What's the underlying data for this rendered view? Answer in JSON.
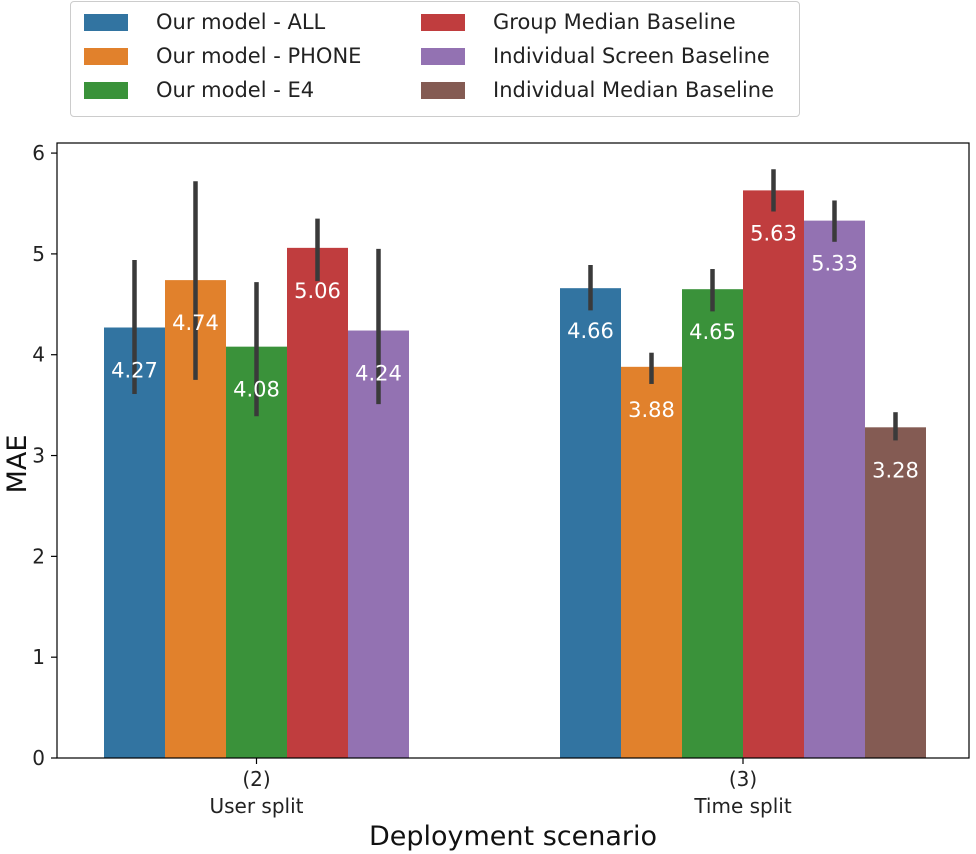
{
  "chart_data": {
    "type": "bar",
    "xlabel": "Deployment scenario",
    "ylabel": "MAE",
    "ylim": [
      0,
      6.1
    ],
    "yticks": [
      0,
      1,
      2,
      3,
      4,
      5,
      6
    ],
    "categories": [
      {
        "line1": "(2)",
        "line2": "User split"
      },
      {
        "line1": "(3)",
        "line2": "Time split"
      }
    ],
    "legend_position": "top-center, above plot",
    "grid": false,
    "series": [
      {
        "name": "Our model - ALL",
        "color": "#3274a1",
        "values": [
          4.27,
          4.66
        ],
        "err_low": [
          3.61,
          4.44
        ],
        "err_high": [
          4.94,
          4.89
        ],
        "labels": [
          "4.27",
          "4.66"
        ]
      },
      {
        "name": "Our model - PHONE",
        "color": "#e1812c",
        "values": [
          4.74,
          3.88
        ],
        "err_low": [
          3.75,
          3.71
        ],
        "err_high": [
          5.72,
          4.02
        ],
        "labels": [
          "4.74",
          "3.88"
        ]
      },
      {
        "name": "Our model - E4",
        "color": "#3a923a",
        "values": [
          4.08,
          4.65
        ],
        "err_low": [
          3.39,
          4.43
        ],
        "err_high": [
          4.72,
          4.85
        ],
        "labels": [
          "4.08",
          "4.65"
        ]
      },
      {
        "name": "Group Median Baseline",
        "color": "#c03d3e",
        "values": [
          5.06,
          5.63
        ],
        "err_low": [
          4.73,
          5.42
        ],
        "err_high": [
          5.35,
          5.84
        ],
        "labels": [
          "5.06",
          "5.63"
        ]
      },
      {
        "name": "Individual Screen Baseline",
        "color": "#9372b2",
        "values": [
          4.24,
          5.33
        ],
        "err_low": [
          3.51,
          5.12
        ],
        "err_high": [
          5.05,
          5.53
        ],
        "labels": [
          "4.24",
          "5.33"
        ]
      },
      {
        "name": "Individual Median Baseline",
        "color": "#845b53",
        "values": [
          null,
          3.28
        ],
        "err_low": [
          null,
          3.15
        ],
        "err_high": [
          null,
          3.43
        ],
        "labels": [
          null,
          "3.28"
        ]
      }
    ]
  }
}
